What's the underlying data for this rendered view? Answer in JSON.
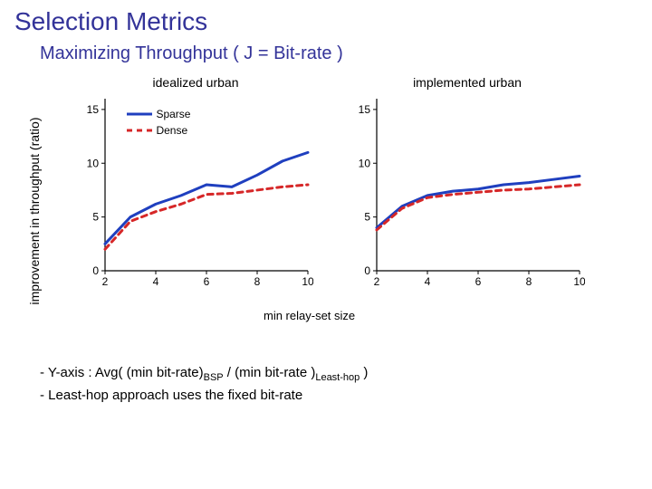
{
  "title": "Selection Metrics",
  "subtitle": "Maximizing Throughput ( J = Bit-rate )",
  "ylabel": "improvement in throughput (ratio)",
  "xlabel_common": "min relay-set size",
  "colors": {
    "sparse": "#1f3fbf",
    "dense": "#d62728",
    "axis": "#000000",
    "bg": "#ffffff"
  },
  "charts": {
    "left": {
      "title": "idealized urban",
      "ylim": [
        0,
        16
      ],
      "yticks": [
        0,
        5,
        10,
        15
      ],
      "xlim": [
        2,
        10
      ],
      "xticks": [
        2,
        4,
        6,
        8,
        10
      ],
      "series": {
        "sparse": {
          "label": "Sparse",
          "type": "line",
          "linewidth": 3,
          "dash": "",
          "x": [
            2,
            3,
            4,
            5,
            6,
            7,
            8,
            9,
            10
          ],
          "y": [
            2.5,
            5.0,
            6.2,
            7.0,
            8.0,
            7.8,
            8.9,
            10.2,
            11.0
          ]
        },
        "dense": {
          "label": "Dense",
          "type": "line",
          "linewidth": 3,
          "dash": "6,5",
          "x": [
            2,
            3,
            4,
            5,
            6,
            7,
            8,
            9,
            10
          ],
          "y": [
            2.0,
            4.6,
            5.5,
            6.2,
            7.1,
            7.2,
            7.5,
            7.8,
            8.0
          ]
        }
      }
    },
    "right": {
      "title": "implemented urban",
      "ylim": [
        0,
        16
      ],
      "yticks": [
        0,
        5,
        10,
        15
      ],
      "xlim": [
        2,
        10
      ],
      "xticks": [
        2,
        4,
        6,
        8,
        10
      ],
      "series": {
        "sparse": {
          "label": "Sparse",
          "type": "line",
          "linewidth": 3,
          "dash": "",
          "x": [
            2,
            3,
            4,
            5,
            6,
            7,
            8,
            9,
            10
          ],
          "y": [
            4.0,
            6.0,
            7.0,
            7.4,
            7.6,
            8.0,
            8.2,
            8.5,
            8.8
          ]
        },
        "dense": {
          "label": "Dense",
          "type": "line",
          "linewidth": 3,
          "dash": "6,5",
          "x": [
            2,
            3,
            4,
            5,
            6,
            7,
            8,
            9,
            10
          ],
          "y": [
            3.8,
            5.8,
            6.8,
            7.1,
            7.3,
            7.5,
            7.6,
            7.8,
            8.0
          ]
        }
      }
    }
  },
  "legend": {
    "items": [
      "sparse",
      "dense"
    ]
  },
  "bullets": [
    "- Y-axis : Avg(  (min bit-rate)<sub>BSP</sub> / (min bit-rate )<sub>Least-hop</sub> )",
    "- Least-hop approach uses the fixed bit-rate"
  ]
}
